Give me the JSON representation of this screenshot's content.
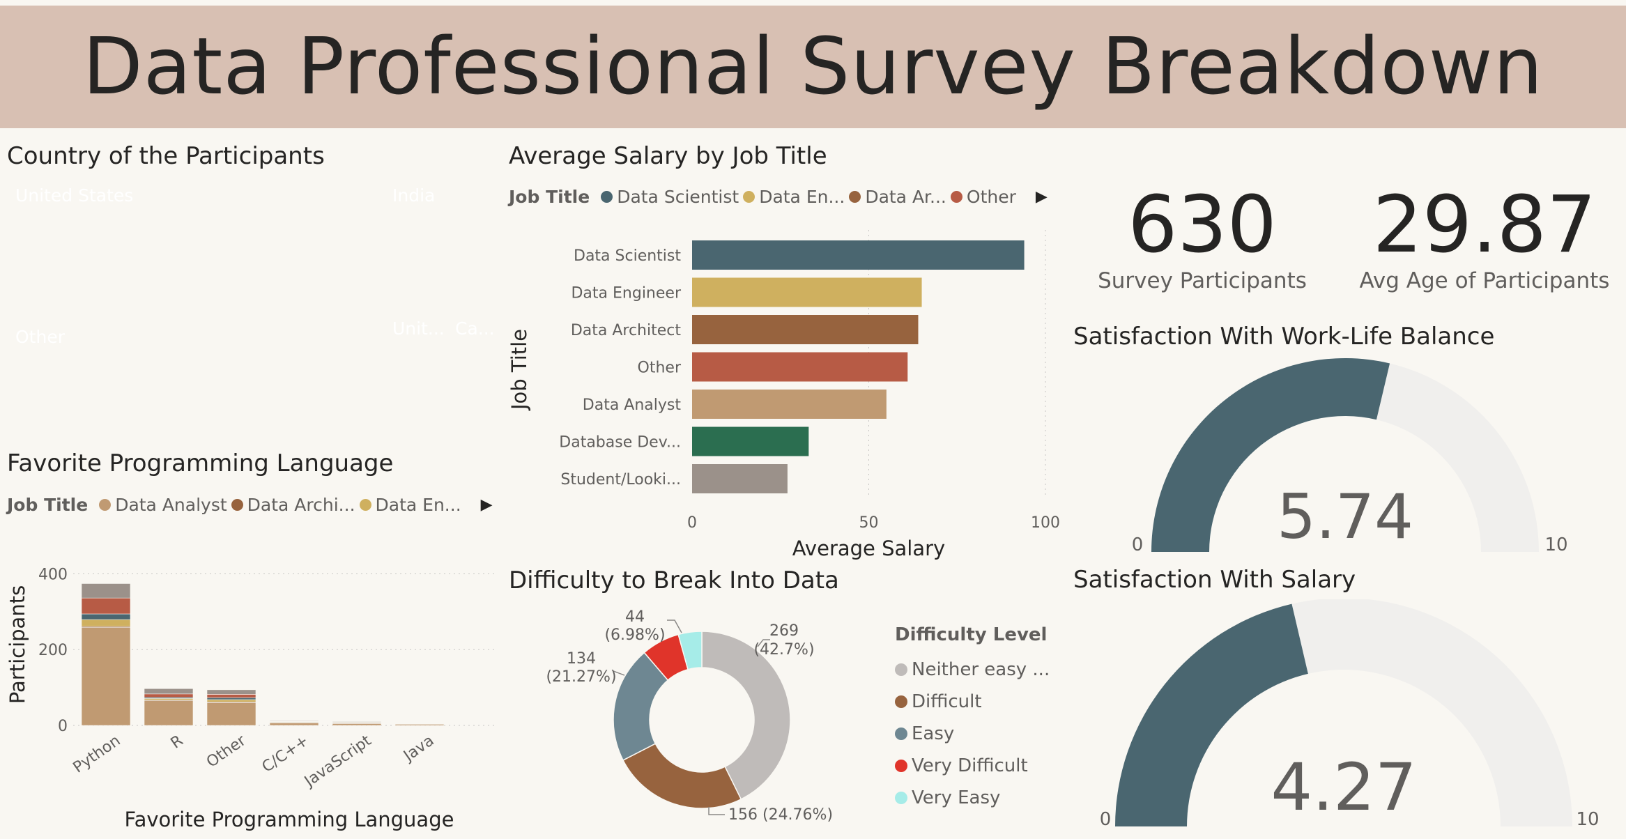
{
  "title": "Data Professional Survey Breakdown",
  "colors": {
    "slate": "#4a6670",
    "gold": "#cfb05f",
    "brown": "#97633e",
    "rust": "#b75b45",
    "tan": "#c09a72",
    "green": "#2b6e50",
    "gray": "#9b918a",
    "lightgray": "#bfbbb9",
    "red": "#e0342a",
    "cyan": "#a6ece8",
    "steel": "#6e8792",
    "track": "#f0efed"
  },
  "country": {
    "title": "Country of the Participants",
    "tiles": [
      {
        "label": "United States",
        "color": "#4a6670"
      },
      {
        "label": "India",
        "color": "#97633e"
      },
      {
        "label": "Other",
        "color": "#cfb05f"
      },
      {
        "label": "Unit...",
        "color": "#b75b45"
      },
      {
        "label": "Ca...",
        "color": "#c09a72"
      }
    ]
  },
  "salary": {
    "title": "Average Salary by Job Title",
    "legend_title": "Job Title",
    "legend": [
      {
        "label": "Data Scientist",
        "color": "#4a6670"
      },
      {
        "label": "Data En...",
        "color": "#cfb05f"
      },
      {
        "label": "Data Ar...",
        "color": "#97633e"
      },
      {
        "label": "Other",
        "color": "#b75b45"
      }
    ],
    "arrow": "▶"
  },
  "lang": {
    "title": "Favorite Programming Language",
    "legend_title": "Job Title",
    "legend": [
      {
        "label": "Data Analyst",
        "color": "#c09a72"
      },
      {
        "label": "Data Archi...",
        "color": "#97633e"
      },
      {
        "label": "Data En...",
        "color": "#cfb05f"
      }
    ],
    "arrow": "▶"
  },
  "difficulty": {
    "title": "Difficulty to Break Into Data",
    "legend_title": "Difficulty Level",
    "legend": [
      {
        "label": "Neither easy ...",
        "color": "#bfbbb9"
      },
      {
        "label": "Difficult",
        "color": "#97633e"
      },
      {
        "label": "Easy",
        "color": "#6e8792"
      },
      {
        "label": "Very Difficult",
        "color": "#e0342a"
      },
      {
        "label": "Very Easy",
        "color": "#a6ece8"
      }
    ]
  },
  "kpis": [
    {
      "value": "630",
      "label": "Survey Participants"
    },
    {
      "value": "29.87",
      "label": "Avg Age of Participants"
    }
  ],
  "gauges": [
    {
      "title": "Satisfaction With Work-Life Balance",
      "value": 5.74,
      "display": "5.74",
      "min": "0",
      "max": "10"
    },
    {
      "title": "Satisfaction With Salary",
      "value": 4.27,
      "display": "4.27",
      "min": "0",
      "max": "10"
    }
  ],
  "chart_data": [
    {
      "type": "bar",
      "orientation": "horizontal",
      "title": "Average Salary by Job Title",
      "categories": [
        "Data Scientist",
        "Data Engineer",
        "Data Architect",
        "Other",
        "Data Analyst",
        "Database Dev...",
        "Student/Looki..."
      ],
      "values": [
        94,
        65,
        64,
        61,
        55,
        33,
        27
      ],
      "colors": [
        "#4a6670",
        "#cfb05f",
        "#97633e",
        "#b75b45",
        "#c09a72",
        "#2b6e50",
        "#9b918a"
      ],
      "xlabel": "Average Salary",
      "ylabel": "Job Title",
      "xlim": [
        0,
        100
      ],
      "xticks": [
        "0",
        "50",
        "100"
      ]
    },
    {
      "type": "bar",
      "stacked": true,
      "title": "Favorite Programming Language",
      "categories": [
        "Python",
        "R",
        "Other",
        "C/C++",
        "JavaScript",
        "Java"
      ],
      "series": [
        {
          "name": "Data Analyst",
          "color": "#c09a72",
          "values": [
            258,
            65,
            60,
            7,
            5,
            3
          ]
        },
        {
          "name": "Data Architect",
          "color": "#97633e",
          "values": [
            3,
            2,
            2,
            1,
            1,
            0
          ]
        },
        {
          "name": "Data Engineer",
          "color": "#cfb05f",
          "values": [
            18,
            4,
            6,
            1,
            1,
            0
          ]
        },
        {
          "color": "#4a6670",
          "values": [
            15,
            3,
            5,
            1,
            1,
            0
          ]
        },
        {
          "color": "#b75b45",
          "values": [
            42,
            9,
            9,
            1,
            1,
            0
          ]
        },
        {
          "color": "#9b918a",
          "values": [
            38,
            14,
            12,
            1,
            1,
            0
          ]
        }
      ],
      "xlabel": "Favorite Programming Language",
      "ylabel": "Participants",
      "ylim": [
        0,
        430
      ],
      "yticks": [
        "0",
        "200",
        "400"
      ]
    },
    {
      "type": "pie",
      "donut": true,
      "title": "Difficulty to Break Into Data",
      "labels": [
        "Neither easy nor difficult",
        "Difficult",
        "Easy",
        "Very Difficult",
        "Very Easy"
      ],
      "values": [
        269,
        156,
        134,
        44,
        27
      ],
      "colors": [
        "#bfbbb9",
        "#97633e",
        "#6e8792",
        "#e0342a",
        "#a6ece8"
      ],
      "data_labels": [
        {
          "count": "269",
          "pct": "(42.7%)"
        },
        {
          "text": "156 (24.76%)"
        },
        {
          "count": "134",
          "pct": "(21.27%)"
        },
        {
          "count": "44",
          "pct": "(6.98%)"
        }
      ]
    }
  ]
}
